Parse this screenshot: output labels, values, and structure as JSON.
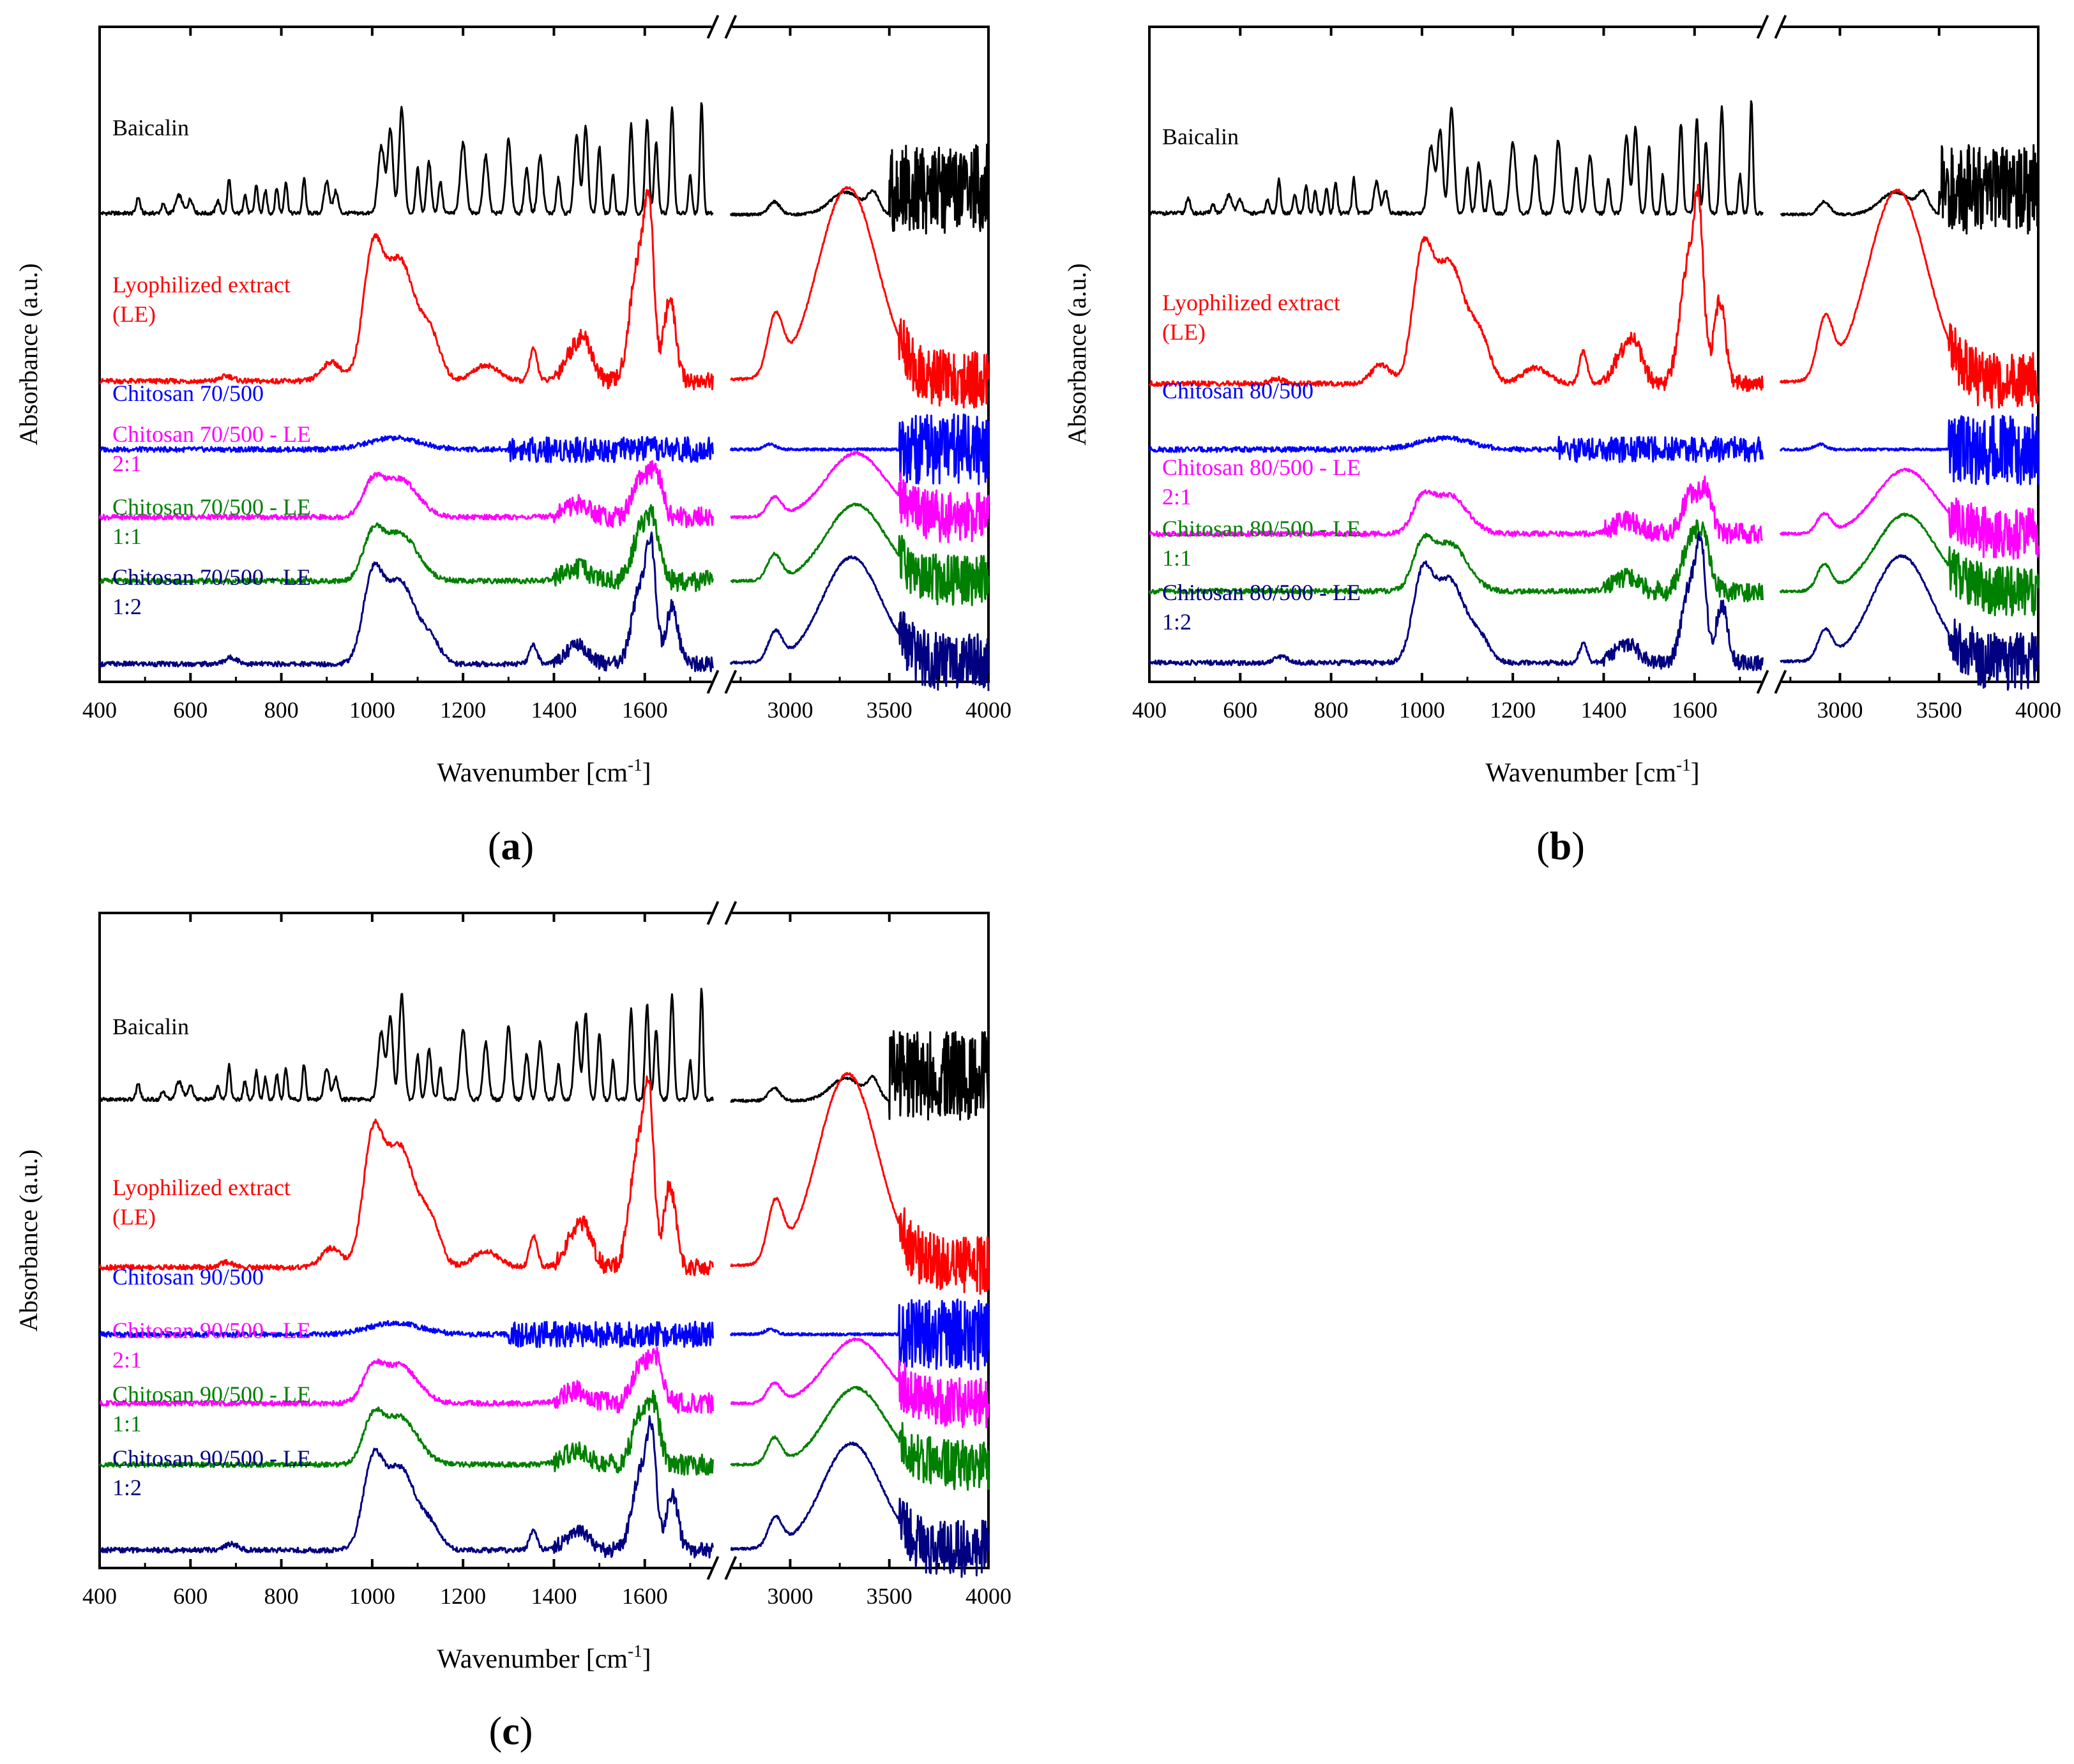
{
  "figure": {
    "panel_labels": [
      "a",
      "b",
      "c"
    ]
  },
  "chart_data": [
    {
      "type": "line",
      "panel": "a",
      "xlabel_main": "Wavenumber [cm",
      "xlabel_sup": "-1",
      "xlabel_tail": "]",
      "ylabel": "Absorbance (a.u.)",
      "axis_break": {
        "from": 1750,
        "to": 2700
      },
      "x_segments": [
        [
          400,
          1750
        ],
        [
          2700,
          4000
        ]
      ],
      "xticks": [
        400,
        600,
        800,
        1000,
        1200,
        1400,
        1600,
        3000,
        3500,
        4000
      ],
      "y_ticks_shown": false,
      "series": [
        {
          "name": "Baicalin",
          "label_lines": [
            "Baicalin"
          ],
          "color": "#000000",
          "profile": "baicalin"
        },
        {
          "name": "Lyophilized extract (LE)",
          "label_lines": [
            "Lyophilized extract",
            "(LE)"
          ],
          "color": "#ff0000",
          "profile": "extract"
        },
        {
          "name": "Chitosan 70/500",
          "label_lines": [
            "Chitosan 70/500"
          ],
          "color": "#0000ff",
          "profile": "chitosan"
        },
        {
          "name": "Chitosan 70/500 - LE 2:1",
          "label_lines": [
            "Chitosan 70/500 - LE",
            "2:1"
          ],
          "color": "#ff00ff",
          "profile": "mix21"
        },
        {
          "name": "Chitosan 70/500 - LE 1:1",
          "label_lines": [
            "Chitosan 70/500 - LE",
            "1:1"
          ],
          "color": "#008000",
          "profile": "mix11"
        },
        {
          "name": "Chitosan 70/500 - LE 1:2",
          "label_lines": [
            "Chitosan 70/500 - LE",
            "1:2"
          ],
          "color": "#000080",
          "profile": "mix12"
        }
      ]
    },
    {
      "type": "line",
      "panel": "b",
      "xlabel_main": "Wavenumber [cm",
      "xlabel_sup": "-1",
      "xlabel_tail": "]",
      "ylabel": "Absorbance (a.u.)",
      "axis_break": {
        "from": 1750,
        "to": 2700
      },
      "x_segments": [
        [
          400,
          1750
        ],
        [
          2700,
          4000
        ]
      ],
      "xticks": [
        400,
        600,
        800,
        1000,
        1200,
        1400,
        1600,
        3000,
        3500,
        4000
      ],
      "y_ticks_shown": false,
      "series": [
        {
          "name": "Baicalin",
          "label_lines": [
            "Baicalin"
          ],
          "color": "#000000",
          "profile": "baicalin"
        },
        {
          "name": "Lyophilized extract (LE)",
          "label_lines": [
            "Lyophilized extract",
            "(LE)"
          ],
          "color": "#ff0000",
          "profile": "extract"
        },
        {
          "name": "Chitosan 80/500",
          "label_lines": [
            "Chitosan 80/500"
          ],
          "color": "#0000ff",
          "profile": "chitosan"
        },
        {
          "name": "Chitosan 80/500 - LE 2:1",
          "label_lines": [
            "Chitosan 80/500 - LE",
            "2:1"
          ],
          "color": "#ff00ff",
          "profile": "mix21"
        },
        {
          "name": "Chitosan 80/500 - LE 1:1",
          "label_lines": [
            "Chitosan 80/500 - LE",
            "1:1"
          ],
          "color": "#008000",
          "profile": "mix11"
        },
        {
          "name": "Chitosan 80/500 - LE 1:2",
          "label_lines": [
            "Chitosan 80/500 - LE",
            "1:2"
          ],
          "color": "#000080",
          "profile": "mix12"
        }
      ]
    },
    {
      "type": "line",
      "panel": "c",
      "xlabel_main": "Wavenumber [cm",
      "xlabel_sup": "-1",
      "xlabel_tail": "]",
      "ylabel": "Absorbance (a.u.)",
      "axis_break": {
        "from": 1750,
        "to": 2700
      },
      "x_segments": [
        [
          400,
          1750
        ],
        [
          2700,
          4000
        ]
      ],
      "xticks": [
        400,
        600,
        800,
        1000,
        1200,
        1400,
        1600,
        3000,
        3500,
        4000
      ],
      "y_ticks_shown": false,
      "series": [
        {
          "name": "Baicalin",
          "label_lines": [
            "Baicalin"
          ],
          "color": "#000000",
          "profile": "baicalin"
        },
        {
          "name": "Lyophilized extract (LE)",
          "label_lines": [
            "Lyophilized extract",
            "(LE)"
          ],
          "color": "#ff0000",
          "profile": "extract"
        },
        {
          "name": "Chitosan 90/500",
          "label_lines": [
            "Chitosan 90/500"
          ],
          "color": "#0000ff",
          "profile": "chitosan"
        },
        {
          "name": "Chitosan 90/500 - LE 2:1",
          "label_lines": [
            "Chitosan 90/500 - LE",
            "2:1"
          ],
          "color": "#ff00ff",
          "profile": "mix21"
        },
        {
          "name": "Chitosan 90/500 - LE 1:1",
          "label_lines": [
            "Chitosan 90/500 - LE",
            "1:1"
          ],
          "color": "#008000",
          "profile": "mix11"
        },
        {
          "name": "Chitosan 90/500 - LE 1:2",
          "label_lines": [
            "Chitosan 90/500 - LE",
            "1:2"
          ],
          "color": "#000080",
          "profile": "mix12"
        }
      ]
    }
  ]
}
